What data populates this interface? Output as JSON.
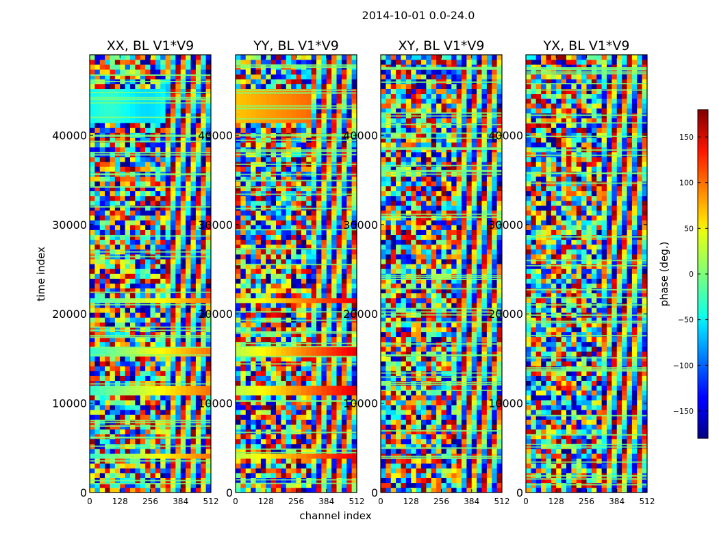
{
  "figure_title": "2014-10-01 0.0-24.0",
  "chart_data": {
    "type": "heatmap",
    "title": "2014-10-01 0.0-24.0",
    "xlabel": "channel index",
    "ylabel": "time index",
    "xlim": [
      0,
      512
    ],
    "ylim": [
      0,
      49000
    ],
    "x_ticks": [
      0,
      128,
      256,
      384,
      512
    ],
    "y_ticks": [
      0,
      10000,
      20000,
      30000,
      40000
    ],
    "panels": [
      {
        "title": "XX, BL V1*V9",
        "polarization": "XX",
        "baseline": "V1*V9"
      },
      {
        "title": "YY, BL V1*V9",
        "polarization": "YY",
        "baseline": "V1*V9"
      },
      {
        "title": "XY, BL V1*V9",
        "polarization": "XY",
        "baseline": "V1*V9"
      },
      {
        "title": "YX, BL V1*V9",
        "polarization": "YX",
        "baseline": "V1*V9"
      }
    ],
    "colorbar": {
      "label": "phase (deg.)",
      "range": [
        -180,
        180
      ],
      "ticks": [
        -150,
        -100,
        -50,
        0,
        50,
        100,
        150
      ],
      "colormap": "jet"
    },
    "features": [
      {
        "time_range": [
          41000,
          45000
        ],
        "channels": [
          0,
          330
        ],
        "description": "coherent phase band"
      },
      {
        "time_range": [
          21000,
          22000
        ],
        "channels": [
          0,
          512
        ],
        "description": "coherent phase band"
      },
      {
        "time_range": [
          15300,
          16000
        ],
        "channels": [
          0,
          512
        ],
        "description": "coherent phase band"
      },
      {
        "time_range": [
          10800,
          11700
        ],
        "channels": [
          0,
          512
        ],
        "description": "coherent phase band"
      },
      {
        "time_range": [
          3600,
          4300
        ],
        "channels": [
          0,
          512
        ],
        "description": "coherent phase band"
      }
    ]
  }
}
